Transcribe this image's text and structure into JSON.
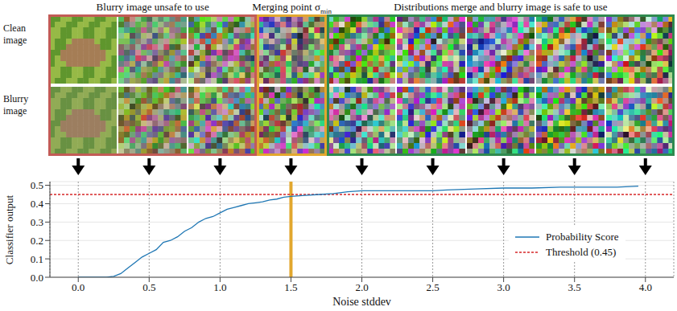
{
  "figure": {
    "regions": [
      {
        "label": "Blurry image unsafe to use",
        "color": "#c25b56"
      },
      {
        "label": "Merging point σ",
        "subscript": "min",
        "color": "#e2a72e"
      },
      {
        "label": "Distributions merge and blurry image is safe to use",
        "color": "#2f8a4f"
      }
    ],
    "rows": [
      "Clean image",
      "Blurry image"
    ],
    "image_noise": [
      0.0,
      0.5,
      1.0,
      1.5,
      2.0,
      2.5,
      3.0,
      3.5,
      4.0
    ]
  },
  "chart_data": {
    "type": "line",
    "x_label": "Noise stddev",
    "y_label": "Classifier output",
    "x": [
      0,
      0.1,
      0.2,
      0.25,
      0.3,
      0.35,
      0.4,
      0.45,
      0.5,
      0.55,
      0.6,
      0.65,
      0.7,
      0.75,
      0.8,
      0.85,
      0.9,
      0.95,
      1.0,
      1.05,
      1.1,
      1.15,
      1.2,
      1.25,
      1.3,
      1.35,
      1.4,
      1.45,
      1.5,
      1.6,
      1.7,
      1.8,
      1.9,
      2.0,
      2.2,
      2.4,
      2.5,
      2.6,
      2.8,
      3.0,
      3.2,
      3.4,
      3.6,
      3.8,
      3.95
    ],
    "series": [
      {
        "name": "Probability Score",
        "color": "#1f77b4",
        "line_style": "solid",
        "values": [
          0,
          0,
          0,
          0.005,
          0.02,
          0.05,
          0.08,
          0.11,
          0.13,
          0.15,
          0.19,
          0.2,
          0.22,
          0.25,
          0.27,
          0.3,
          0.32,
          0.33,
          0.35,
          0.37,
          0.38,
          0.39,
          0.4,
          0.405,
          0.41,
          0.42,
          0.425,
          0.435,
          0.44,
          0.445,
          0.45,
          0.455,
          0.465,
          0.47,
          0.47,
          0.47,
          0.47,
          0.475,
          0.48,
          0.485,
          0.485,
          0.49,
          0.49,
          0.49,
          0.495
        ]
      }
    ],
    "threshold": {
      "name": "Threshold (0.45)",
      "value": 0.45,
      "color": "#d62728",
      "line_style": "dotted"
    },
    "merging_point": {
      "value": 1.5,
      "color": "#e2a72e"
    },
    "xlim": [
      -0.2,
      4.2
    ],
    "xticks": [
      {
        "value": 0,
        "label": "0.0"
      },
      {
        "value": 0.5,
        "label": "0.5"
      },
      {
        "value": 1,
        "label": "1.0"
      },
      {
        "value": 1.5,
        "label": "1.5"
      },
      {
        "value": 2,
        "label": "2.0"
      },
      {
        "value": 2.5,
        "label": "2.5"
      },
      {
        "value": 3,
        "label": "3.0"
      },
      {
        "value": 3.5,
        "label": "3.5"
      },
      {
        "value": 4,
        "label": "4.0"
      }
    ],
    "ylim": [
      0,
      0.52
    ],
    "yticks": [
      {
        "value": 0,
        "label": "0.0"
      },
      {
        "value": 0.1,
        "label": "0.1"
      },
      {
        "value": 0.2,
        "label": "0.2"
      },
      {
        "value": 0.3,
        "label": "0.3"
      },
      {
        "value": 0.4,
        "label": "0.4"
      },
      {
        "value": 0.5,
        "label": "0.5"
      }
    ],
    "grid": true,
    "legend": "lower right"
  }
}
